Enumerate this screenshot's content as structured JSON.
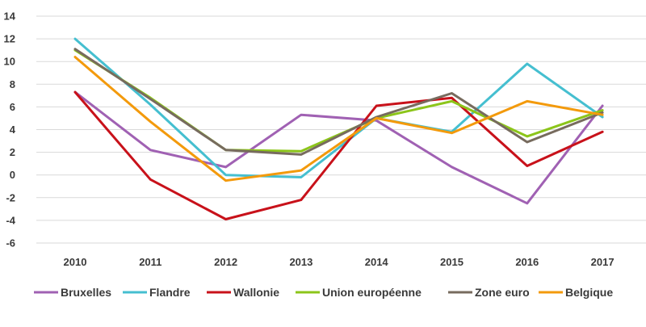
{
  "chart_data": {
    "type": "line",
    "x": [
      "2010",
      "2011",
      "2012",
      "2013",
      "2014",
      "2015",
      "2016",
      "2017"
    ],
    "ylim": [
      -6,
      14
    ],
    "yticks": [
      -6,
      -4,
      -2,
      0,
      2,
      4,
      6,
      8,
      10,
      12,
      14
    ],
    "grid": true,
    "legend_position": "bottom",
    "series": [
      {
        "name": "Bruxelles",
        "color": "#a061b3",
        "values": [
          7.3,
          2.2,
          0.7,
          5.3,
          4.8,
          0.7,
          -2.5,
          6.1
        ]
      },
      {
        "name": "Flandre",
        "color": "#45bfd0",
        "values": [
          12.0,
          6.2,
          0.0,
          -0.2,
          5.0,
          3.8,
          9.8,
          5.1
        ]
      },
      {
        "name": "Wallonie",
        "color": "#c8111a",
        "values": [
          7.3,
          -0.4,
          -3.9,
          -2.2,
          6.1,
          6.8,
          0.8,
          3.8
        ]
      },
      {
        "name": "Union européenne",
        "color": "#8cc51a",
        "values": [
          11.0,
          6.8,
          2.2,
          2.1,
          5.0,
          6.5,
          3.4,
          5.7
        ]
      },
      {
        "name": "Zone euro",
        "color": "#776b5e",
        "values": [
          11.1,
          6.7,
          2.2,
          1.8,
          5.1,
          7.2,
          2.9,
          5.5
        ]
      },
      {
        "name": "Belgique",
        "color": "#f39a0c",
        "values": [
          10.4,
          4.7,
          -0.5,
          0.4,
          5.0,
          3.7,
          6.5,
          5.3
        ]
      }
    ]
  }
}
